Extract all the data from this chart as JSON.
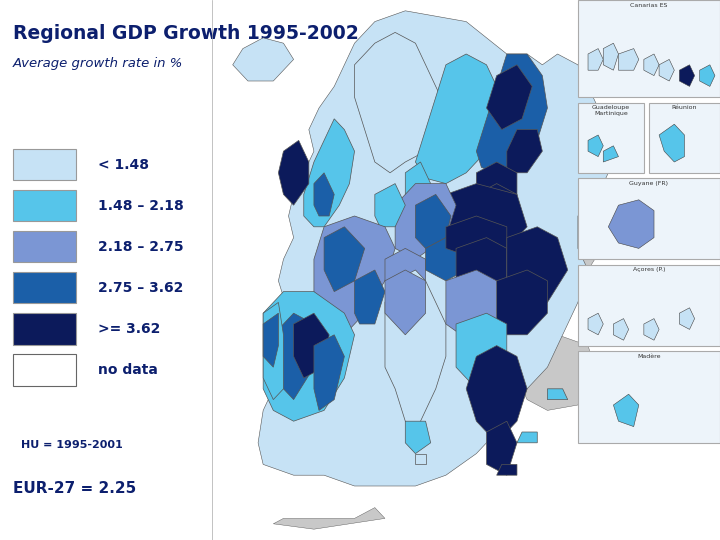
{
  "title": "Regional GDP Growth 1995-2002",
  "subtitle": "Average growth rate in %",
  "title_color": "#0C1F6E",
  "title_fontsize": 13.5,
  "subtitle_fontsize": 9.5,
  "background_color": "#FFFFFF",
  "legend_items": [
    {
      "label": "< 1.48",
      "color": "#C6E2F5",
      "edge": "#999999"
    },
    {
      "label": "1.48 – 2.18",
      "color": "#56C5EA",
      "edge": "#999999"
    },
    {
      "label": "2.18 – 2.75",
      "color": "#7B96D4",
      "edge": "#999999"
    },
    {
      "label": "2.75 – 3.62",
      "color": "#1B5FA8",
      "edge": "#999999"
    },
    {
      "label": ">= 3.62",
      "color": "#0C1A5B",
      "edge": "#999999"
    },
    {
      "label": "no data",
      "color": "#FFFFFF",
      "edge": "#666666"
    }
  ],
  "note1": "HU = 1995-2001",
  "note2": "EUR-27 = 2.25",
  "ocean_color": "#D9EDF7",
  "land_outside_color": "#C8C8C8",
  "map_border_color": "#AAAAAA",
  "inset_bg": "#EDF4FA",
  "inset_border": "#AAAAAA",
  "legend_label_fontsize": 10,
  "note1_fontsize": 8,
  "note2_fontsize": 11
}
